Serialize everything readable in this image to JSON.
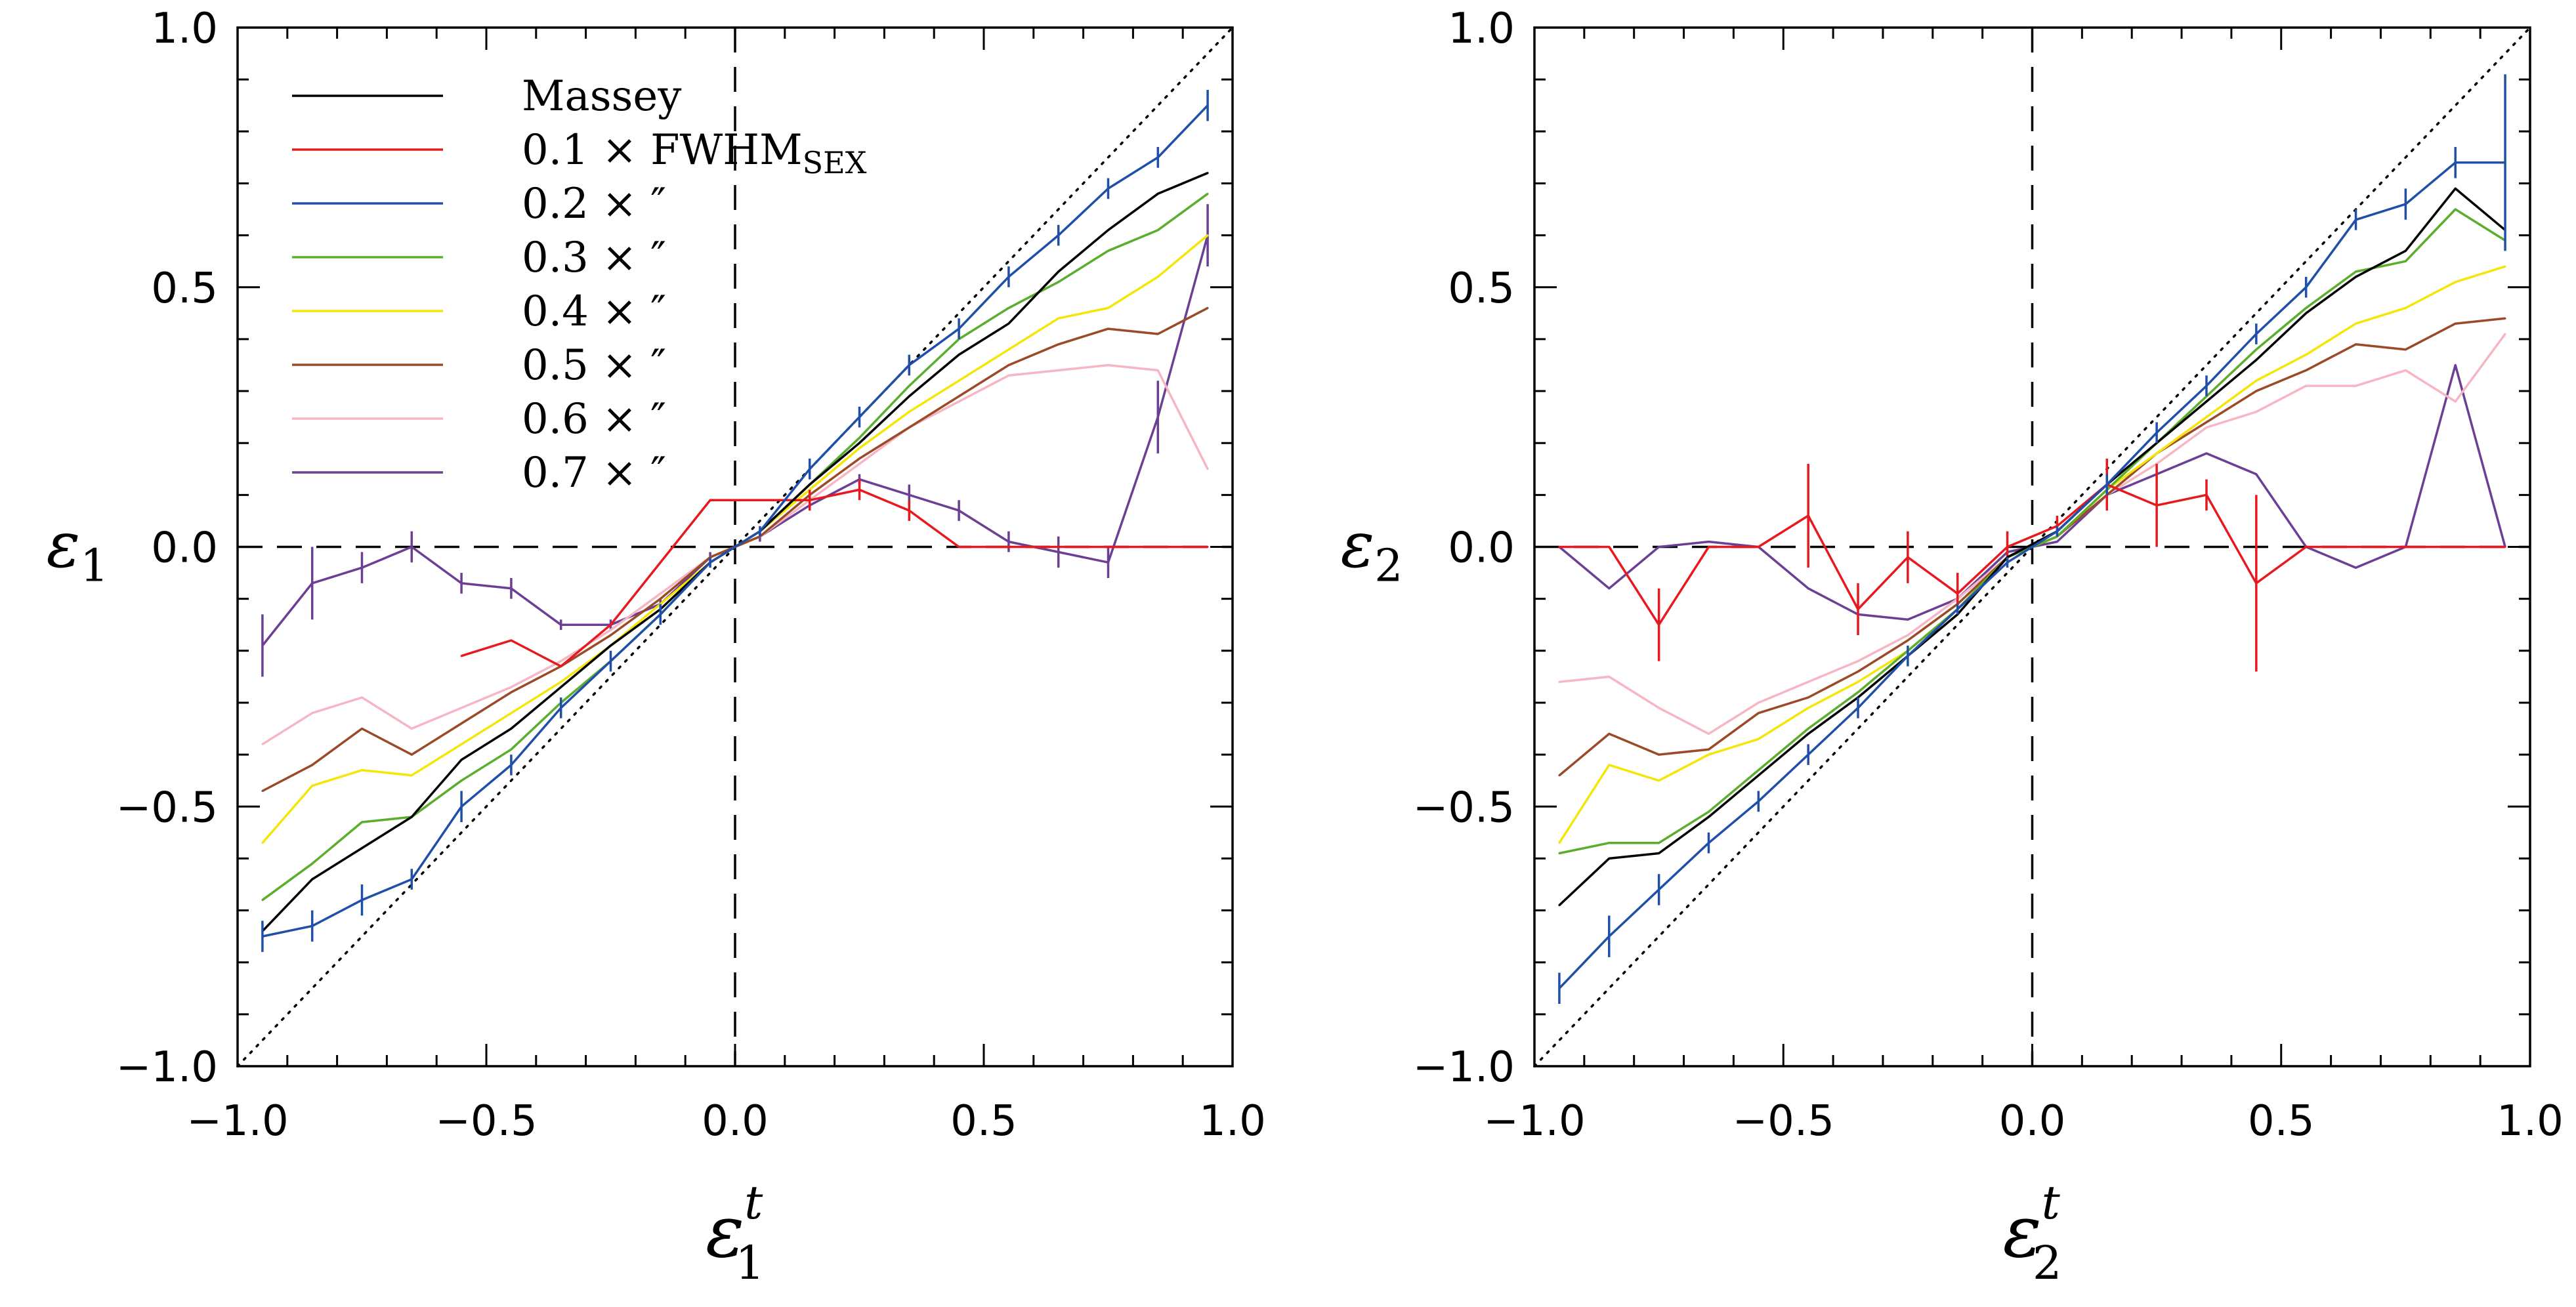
{
  "chart_data": [
    {
      "type": "line",
      "panel": "left",
      "ylabel": {
        "symbol": "ε",
        "subscript": "1"
      },
      "xlabel": {
        "symbol": "ε",
        "superscript": "t",
        "subscript": "1"
      },
      "xlim": [
        -1.0,
        1.0
      ],
      "ylim": [
        -1.0,
        1.0
      ],
      "xticks": [
        -1.0,
        -0.5,
        0.0,
        0.5,
        1.0
      ],
      "yticks": [
        -1.0,
        -0.5,
        0.0,
        0.5,
        1.0
      ],
      "xtick_labels": [
        "−1.0",
        "−0.5",
        "0.0",
        "0.5",
        "1.0"
      ],
      "ytick_labels": [
        "−1.0",
        "−0.5",
        "0.0",
        "0.5",
        "1.0"
      ],
      "reference_lines": [
        "identity (dotted diagonal)",
        "x = 0 (dashed)",
        "y = 0 (dashed)"
      ],
      "x": [
        -0.95,
        -0.85,
        -0.75,
        -0.65,
        -0.55,
        -0.45,
        -0.35,
        -0.25,
        -0.15,
        -0.05,
        0.05,
        0.15,
        0.25,
        0.35,
        0.45,
        0.55,
        0.65,
        0.75,
        0.85,
        0.95
      ],
      "series": [
        {
          "key": "massey",
          "values": [
            -0.74,
            -0.64,
            -0.58,
            -0.52,
            -0.41,
            -0.35,
            -0.27,
            -0.19,
            -0.12,
            -0.03,
            0.03,
            0.12,
            0.2,
            0.29,
            0.37,
            0.43,
            0.53,
            0.61,
            0.68,
            0.72
          ]
        },
        {
          "key": "f01",
          "values": [
            null,
            null,
            null,
            null,
            -0.21,
            -0.18,
            -0.23,
            -0.15,
            -0.03,
            0.09,
            0.09,
            0.09,
            0.11,
            0.07,
            0.0,
            0.0,
            0.0,
            0.0,
            0.0,
            0.0
          ],
          "errors": [
            null,
            null,
            null,
            null,
            null,
            null,
            null,
            null,
            null,
            null,
            null,
            0.02,
            0.02,
            0.02,
            null,
            null,
            null,
            null,
            null,
            null
          ]
        },
        {
          "key": "f02",
          "values": [
            -0.75,
            -0.73,
            -0.68,
            -0.64,
            -0.5,
            -0.42,
            -0.31,
            -0.22,
            -0.13,
            -0.03,
            0.03,
            0.15,
            0.25,
            0.35,
            0.42,
            0.52,
            0.6,
            0.69,
            0.75,
            0.85
          ],
          "errors": [
            0.03,
            0.03,
            0.03,
            0.02,
            0.03,
            0.02,
            0.02,
            0.02,
            0.02,
            0.01,
            0.01,
            0.02,
            0.02,
            0.02,
            0.02,
            0.02,
            0.02,
            0.02,
            0.02,
            0.03
          ]
        },
        {
          "key": "f03",
          "values": [
            -0.68,
            -0.61,
            -0.53,
            -0.52,
            -0.45,
            -0.39,
            -0.3,
            -0.22,
            -0.13,
            -0.03,
            0.03,
            0.12,
            0.21,
            0.31,
            0.4,
            0.46,
            0.51,
            0.57,
            0.61,
            0.68
          ]
        },
        {
          "key": "f04",
          "values": [
            -0.57,
            -0.46,
            -0.43,
            -0.44,
            -0.38,
            -0.32,
            -0.26,
            -0.19,
            -0.11,
            -0.03,
            0.03,
            0.11,
            0.19,
            0.26,
            0.32,
            0.38,
            0.44,
            0.46,
            0.52,
            0.6
          ]
        },
        {
          "key": "f05",
          "values": [
            -0.47,
            -0.42,
            -0.35,
            -0.4,
            -0.34,
            -0.28,
            -0.23,
            -0.17,
            -0.1,
            -0.02,
            0.02,
            0.1,
            0.17,
            0.23,
            0.29,
            0.35,
            0.39,
            0.42,
            0.41,
            0.46
          ]
        },
        {
          "key": "f06",
          "values": [
            -0.38,
            -0.32,
            -0.29,
            -0.35,
            -0.31,
            -0.27,
            -0.22,
            -0.16,
            -0.09,
            -0.02,
            0.02,
            0.09,
            0.16,
            0.23,
            0.28,
            0.33,
            0.34,
            0.35,
            0.34,
            0.15
          ]
        },
        {
          "key": "f07",
          "values": [
            -0.19,
            -0.07,
            -0.04,
            0.0,
            -0.07,
            -0.08,
            -0.15,
            -0.15,
            -0.11,
            -0.02,
            0.02,
            0.08,
            0.13,
            0.1,
            0.07,
            0.01,
            -0.01,
            -0.03,
            0.25,
            0.6
          ],
          "errors": [
            0.06,
            0.07,
            0.03,
            0.03,
            0.02,
            0.02,
            0.01,
            0.01,
            0.01,
            0.01,
            0.01,
            0.01,
            0.01,
            0.02,
            0.02,
            0.02,
            0.03,
            0.03,
            0.07,
            0.06
          ]
        }
      ]
    },
    {
      "type": "line",
      "panel": "right",
      "ylabel": {
        "symbol": "ε",
        "subscript": "2"
      },
      "xlabel": {
        "symbol": "ε",
        "superscript": "t",
        "subscript": "2"
      },
      "xlim": [
        -1.0,
        1.0
      ],
      "ylim": [
        -1.0,
        1.0
      ],
      "xticks": [
        -1.0,
        -0.5,
        0.0,
        0.5,
        1.0
      ],
      "yticks": [
        -1.0,
        -0.5,
        0.0,
        0.5,
        1.0
      ],
      "xtick_labels": [
        "−1.0",
        "−0.5",
        "0.0",
        "0.5",
        "1.0"
      ],
      "ytick_labels": [
        "−1.0",
        "−0.5",
        "0.0",
        "0.5",
        "1.0"
      ],
      "reference_lines": [
        "identity (dotted diagonal)",
        "x = 0 (dashed)",
        "y = 0 (dashed)"
      ],
      "x": [
        -0.95,
        -0.85,
        -0.75,
        -0.65,
        -0.55,
        -0.45,
        -0.35,
        -0.25,
        -0.15,
        -0.05,
        0.05,
        0.15,
        0.25,
        0.35,
        0.45,
        0.55,
        0.65,
        0.75,
        0.85,
        0.95
      ],
      "series": [
        {
          "key": "massey",
          "values": [
            -0.69,
            -0.6,
            -0.59,
            -0.52,
            -0.44,
            -0.36,
            -0.29,
            -0.21,
            -0.13,
            -0.02,
            0.03,
            0.12,
            0.2,
            0.28,
            0.36,
            0.45,
            0.52,
            0.57,
            0.69,
            0.61
          ]
        },
        {
          "key": "f01",
          "values": [
            0.0,
            0.0,
            -0.15,
            0.0,
            0.0,
            0.06,
            -0.12,
            -0.02,
            -0.09,
            0.0,
            0.04,
            0.12,
            0.08,
            0.1,
            -0.07,
            0.0,
            0.0,
            0.0,
            0.0,
            0.0
          ],
          "errors": [
            null,
            null,
            0.07,
            null,
            null,
            0.1,
            0.05,
            0.05,
            0.04,
            0.03,
            0.02,
            0.05,
            0.08,
            0.03,
            0.17,
            null,
            null,
            null,
            null,
            null
          ]
        },
        {
          "key": "f02",
          "values": [
            -0.85,
            -0.75,
            -0.66,
            -0.57,
            -0.49,
            -0.4,
            -0.31,
            -0.21,
            -0.12,
            -0.03,
            0.03,
            0.12,
            0.22,
            0.31,
            0.41,
            0.5,
            0.63,
            0.66,
            0.74,
            0.74
          ],
          "errors": [
            0.03,
            0.04,
            0.03,
            0.02,
            0.02,
            0.02,
            0.02,
            0.02,
            0.01,
            0.01,
            0.01,
            0.02,
            0.02,
            0.02,
            0.02,
            0.02,
            0.02,
            0.03,
            0.03,
            0.17
          ]
        },
        {
          "key": "f03",
          "values": [
            -0.59,
            -0.57,
            -0.57,
            -0.51,
            -0.43,
            -0.35,
            -0.28,
            -0.2,
            -0.12,
            -0.02,
            0.02,
            0.11,
            0.2,
            0.29,
            0.38,
            0.46,
            0.53,
            0.55,
            0.65,
            0.59
          ]
        },
        {
          "key": "f04",
          "values": [
            -0.57,
            -0.42,
            -0.45,
            -0.4,
            -0.37,
            -0.31,
            -0.26,
            -0.2,
            -0.12,
            -0.02,
            0.02,
            0.11,
            0.18,
            0.25,
            0.32,
            0.37,
            0.43,
            0.46,
            0.51,
            0.54
          ]
        },
        {
          "key": "f05",
          "values": [
            -0.44,
            -0.36,
            -0.4,
            -0.39,
            -0.32,
            -0.29,
            -0.24,
            -0.18,
            -0.11,
            -0.02,
            0.02,
            0.1,
            0.18,
            0.24,
            0.3,
            0.34,
            0.39,
            0.38,
            0.43,
            0.44
          ]
        },
        {
          "key": "f06",
          "values": [
            -0.26,
            -0.25,
            -0.31,
            -0.36,
            -0.3,
            -0.26,
            -0.22,
            -0.17,
            -0.1,
            -0.02,
            0.02,
            0.1,
            0.16,
            0.23,
            0.26,
            0.31,
            0.31,
            0.34,
            0.28,
            0.41
          ]
        },
        {
          "key": "f07",
          "values": [
            0.0,
            -0.08,
            0.0,
            0.01,
            0.0,
            -0.08,
            -0.13,
            -0.14,
            -0.1,
            -0.01,
            0.01,
            0.1,
            0.14,
            0.18,
            0.14,
            0.0,
            -0.04,
            0.0,
            0.35,
            0.0
          ]
        }
      ]
    }
  ],
  "legend": {
    "entries": [
      {
        "key": "massey",
        "color": "#000000",
        "text": "Massey"
      },
      {
        "key": "f01",
        "color": "#e8191e",
        "prefix": "0.1 × ",
        "text": "FWHM",
        "sub": "SEX"
      },
      {
        "key": "f02",
        "color": "#1f4fa8",
        "prefix": "0.2 × ",
        "text": "″"
      },
      {
        "key": "f03",
        "color": "#5aae2c",
        "prefix": "0.3 × ",
        "text": "″"
      },
      {
        "key": "f04",
        "color": "#f5e60a",
        "prefix": "0.4 × ",
        "text": "″"
      },
      {
        "key": "f05",
        "color": "#9b4a28",
        "prefix": "0.5 × ",
        "text": "″"
      },
      {
        "key": "f06",
        "color": "#f6b6c3",
        "prefix": "0.6 × ",
        "text": "″"
      },
      {
        "key": "f07",
        "color": "#6b3f94",
        "prefix": "0.7 × ",
        "text": "″"
      }
    ]
  }
}
